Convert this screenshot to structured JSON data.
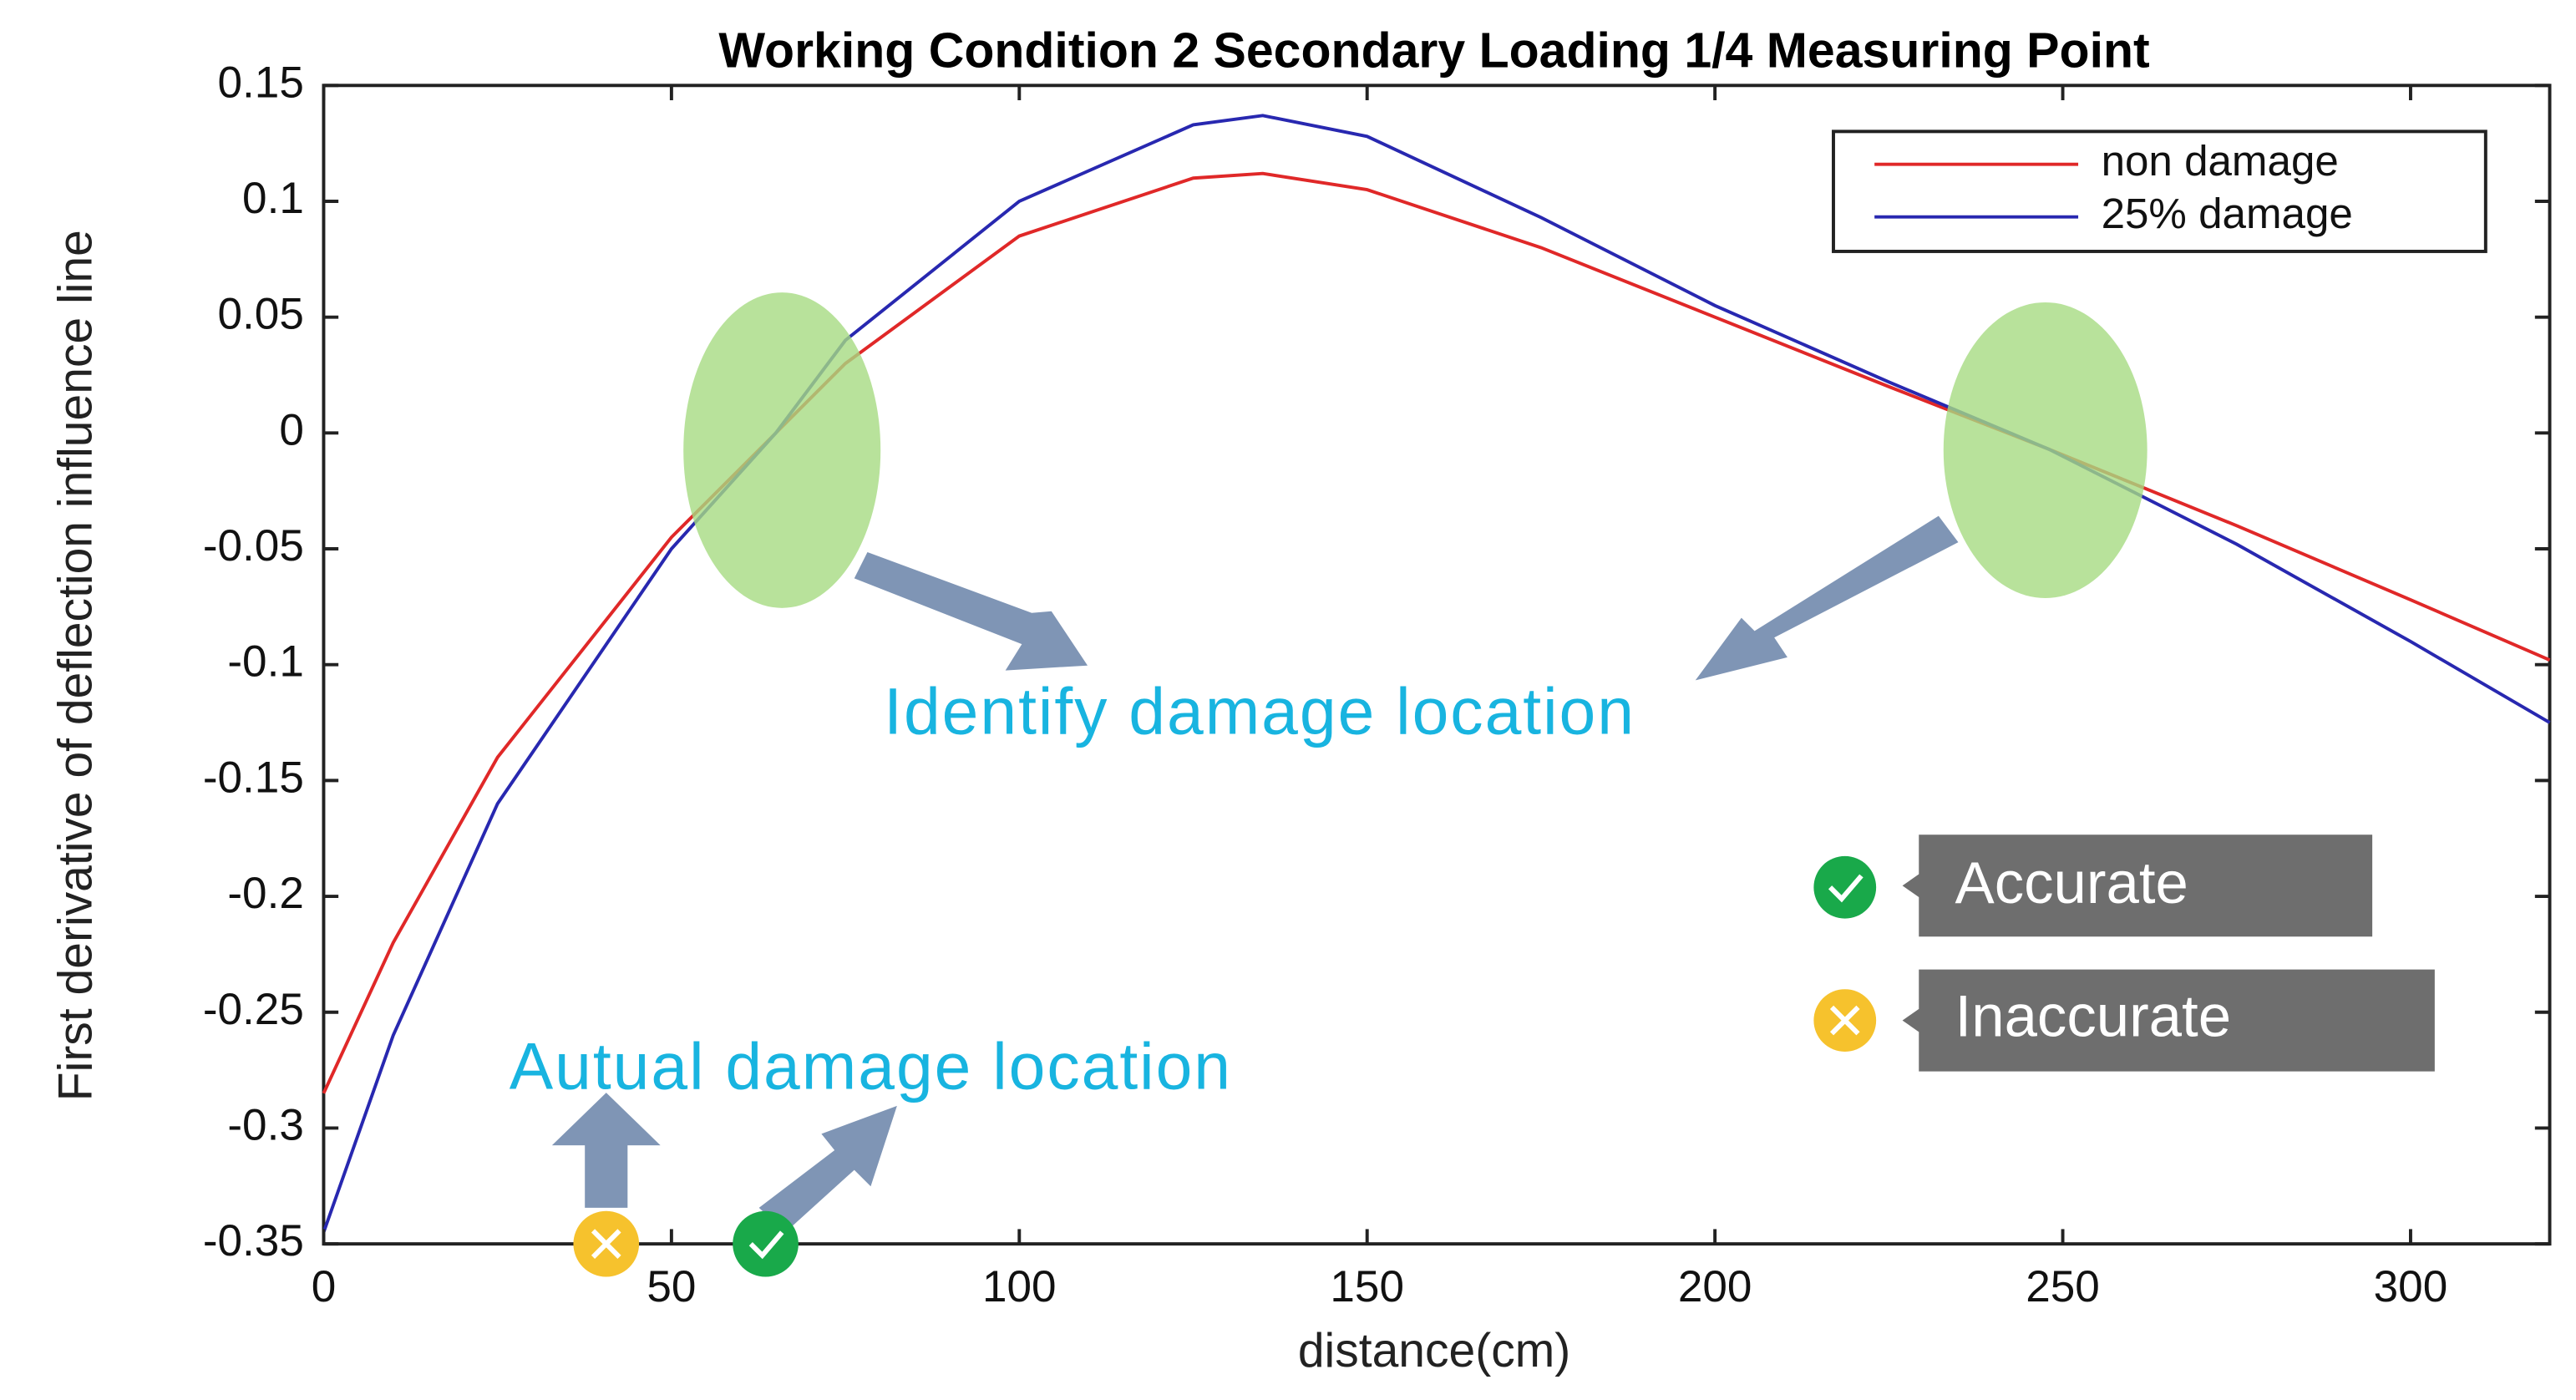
{
  "chart_data": {
    "type": "line",
    "title": "Working Condition 2 Secondary Loading 1/4 Measuring Point",
    "x_label": "distance(cm)",
    "y_label": "First derivative of deflection influence line",
    "x": [
      0,
      10,
      25,
      50,
      65,
      75,
      100,
      125,
      135,
      150,
      175,
      200,
      225,
      248,
      275,
      300,
      320
    ],
    "series": [
      {
        "name": "non damage",
        "color": "#e02828",
        "values": [
          -0.285,
          -0.22,
          -0.14,
          -0.045,
          0.0,
          0.03,
          0.085,
          0.11,
          0.112,
          0.105,
          0.08,
          0.05,
          0.02,
          -0.007,
          -0.04,
          -0.072,
          -0.098
        ]
      },
      {
        "name": "25% damage",
        "color": "#2828b0",
        "values": [
          -0.345,
          -0.26,
          -0.16,
          -0.05,
          0.0,
          0.04,
          0.1,
          0.133,
          0.137,
          0.128,
          0.093,
          0.055,
          0.022,
          -0.007,
          -0.048,
          -0.09,
          -0.125
        ]
      }
    ],
    "xlim": [
      0,
      320
    ],
    "xticks": [
      0,
      50,
      100,
      150,
      200,
      250,
      300
    ],
    "ylim": [
      -0.35,
      0.15
    ],
    "yticks": [
      0.15,
      0.1,
      0.05,
      0,
      -0.05,
      -0.1,
      -0.15,
      -0.2,
      -0.25,
      -0.3,
      -0.35
    ],
    "legend": "northeast",
    "annotations": [
      "Identify damage location",
      "Autual damage location",
      "Accurate",
      "Inaccurate"
    ]
  }
}
